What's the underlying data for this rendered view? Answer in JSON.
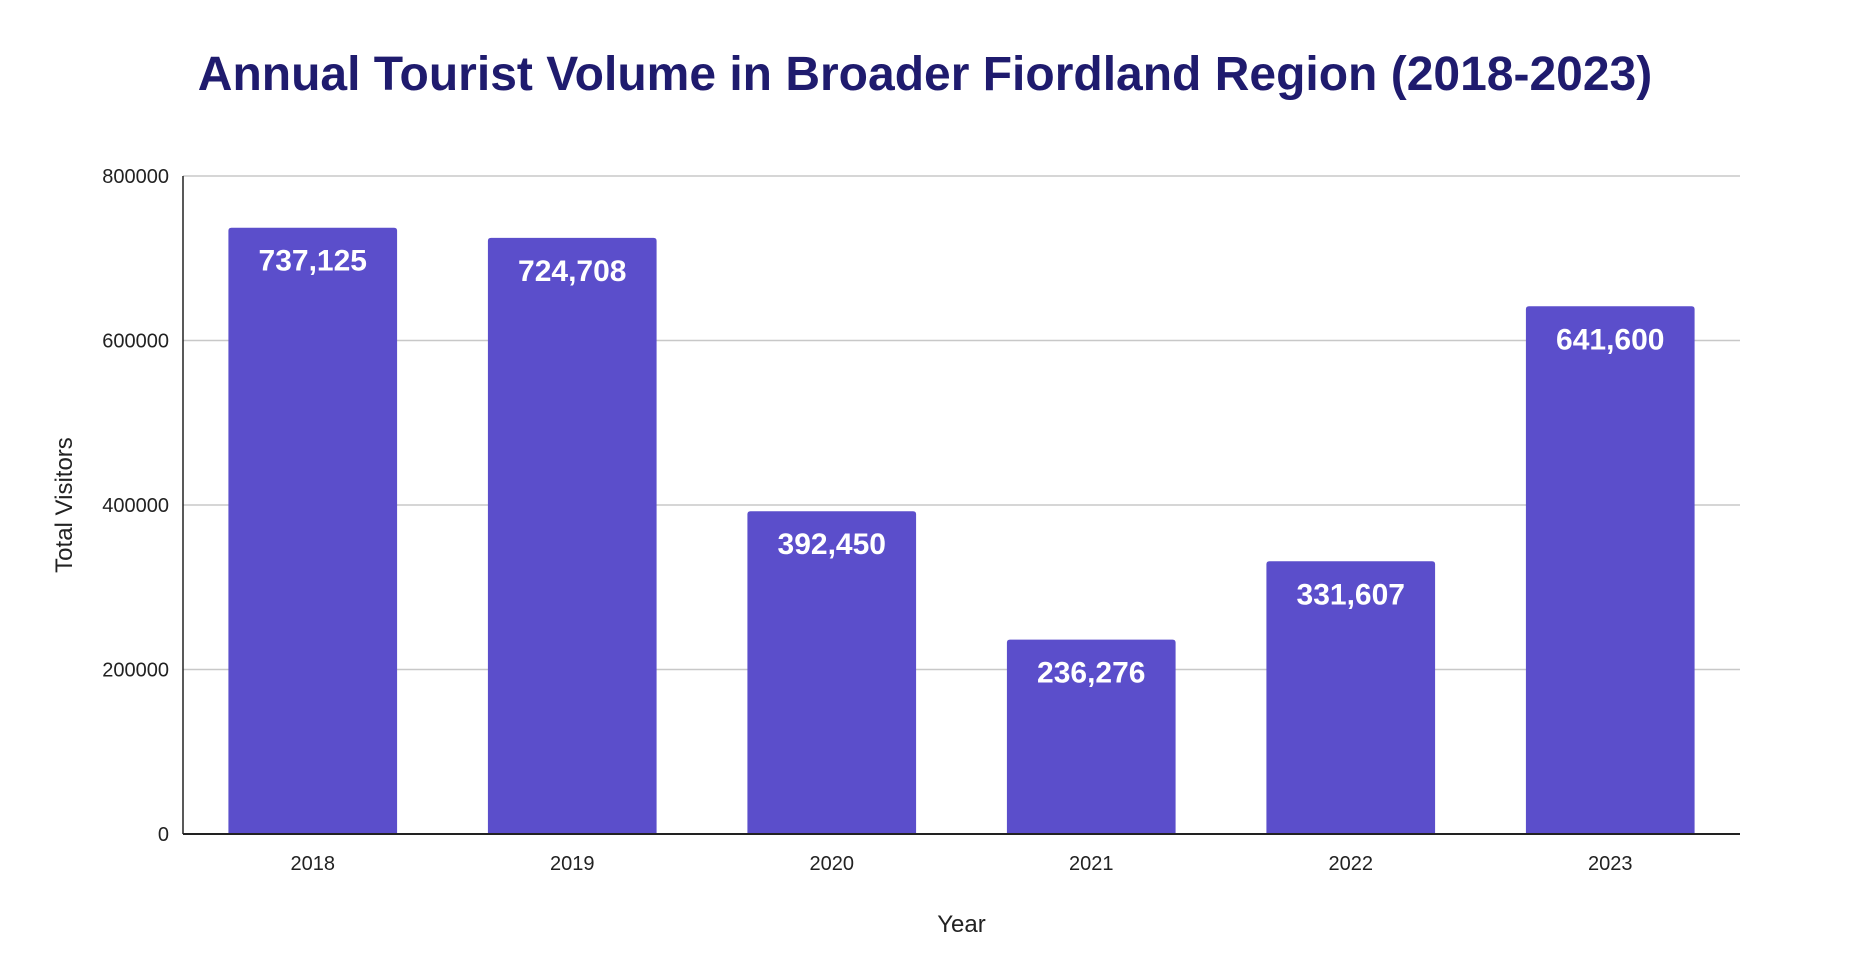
{
  "chart_data": {
    "type": "bar",
    "title": "Annual Tourist Volume in Broader Fiordland Region (2018-2023)",
    "xlabel": "Year",
    "ylabel": "Total Visitors",
    "categories": [
      "2018",
      "2019",
      "2020",
      "2021",
      "2022",
      "2023"
    ],
    "values": [
      737125,
      724708,
      392450,
      236276,
      331607,
      641600
    ],
    "data_labels": [
      "737,125",
      "724,708",
      "392,450",
      "236,276",
      "331,607",
      "641,600"
    ],
    "ylim": [
      0,
      800000
    ],
    "yticks": [
      0,
      200000,
      400000,
      600000,
      800000
    ],
    "ytick_labels": [
      "0",
      "200000",
      "400000",
      "600000",
      "800000"
    ],
    "grid": true,
    "legend": "none",
    "colors": {
      "bar": "#5b4ecb",
      "title": "#1f1b6e",
      "grid": "#c8c8c8",
      "axis": "#222222",
      "data_label": "#ffffff"
    }
  }
}
